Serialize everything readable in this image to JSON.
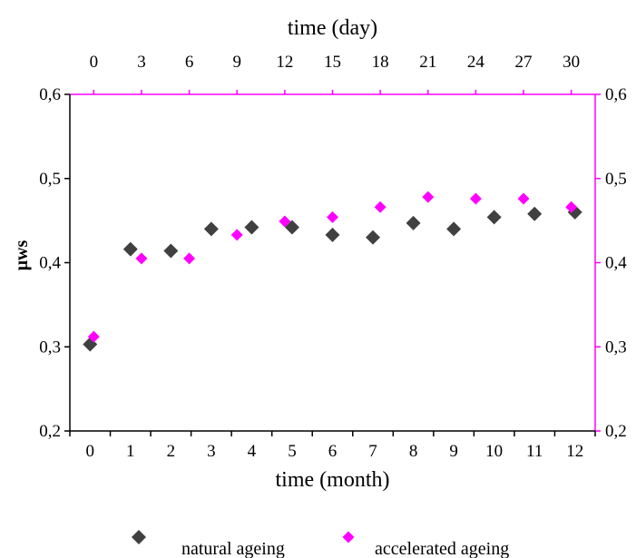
{
  "chart_data": {
    "type": "scatter",
    "xlabel": "time (month)",
    "x2label": "time (day)",
    "ylabel": "μws",
    "ylim": [
      0.2,
      0.6
    ],
    "xlim": [
      -0.5,
      12.5
    ],
    "x2lim": [
      -1.5,
      31.5
    ],
    "yticks": [
      0.2,
      0.3,
      0.4,
      0.5,
      0.6
    ],
    "ytick_labels": [
      "0,2",
      "0,3",
      "0,4",
      "0,5",
      "0,6"
    ],
    "xticks": [
      0,
      1,
      2,
      3,
      4,
      5,
      6,
      7,
      8,
      9,
      10,
      11,
      12
    ],
    "xtick_labels": [
      "0",
      "1",
      "2",
      "3",
      "4",
      "5",
      "6",
      "7",
      "8",
      "9",
      "10",
      "11",
      "12"
    ],
    "x2ticks": [
      0,
      3,
      6,
      9,
      12,
      15,
      18,
      21,
      24,
      27,
      30
    ],
    "x2tick_labels": [
      "0",
      "3",
      "6",
      "9",
      "12",
      "15",
      "18",
      "21",
      "24",
      "27",
      "30"
    ],
    "grid": false,
    "legend_position": "bottom",
    "series": [
      {
        "name": "natural ageing",
        "axis": "bottom",
        "color": "#404040",
        "marker": "diamond",
        "x": [
          0,
          1,
          2,
          3,
          4,
          5,
          6,
          7,
          8,
          9,
          10,
          11,
          12
        ],
        "y": [
          0.303,
          0.416,
          0.414,
          0.44,
          0.442,
          0.442,
          0.433,
          0.43,
          0.447,
          0.44,
          0.454,
          0.458,
          0.46
        ]
      },
      {
        "name": "accelerated ageing",
        "axis": "top",
        "color": "#ff00ff",
        "marker": "diamond",
        "x": [
          0,
          3,
          6,
          9,
          12,
          15,
          18,
          21,
          24,
          27,
          30
        ],
        "y": [
          0.312,
          0.405,
          0.405,
          0.433,
          0.449,
          0.454,
          0.466,
          0.478,
          0.476,
          0.476,
          0.466
        ]
      }
    ]
  }
}
